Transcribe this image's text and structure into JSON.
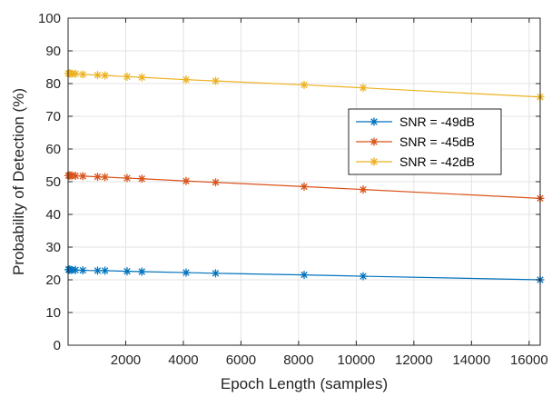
{
  "chart_data": {
    "type": "line",
    "xlabel": "Epoch Length (samples)",
    "ylabel": "Probability of Detection (%)",
    "xlim": [
      0,
      16384
    ],
    "ylim": [
      0,
      100
    ],
    "xticks": [
      2000,
      4000,
      6000,
      8000,
      10000,
      12000,
      14000,
      16000
    ],
    "yticks": [
      0,
      10,
      20,
      30,
      40,
      50,
      60,
      70,
      80,
      90,
      100
    ],
    "grid": true,
    "legend_position": "right",
    "x": [
      16,
      32,
      64,
      128,
      256,
      512,
      1024,
      1280,
      2048,
      2560,
      4096,
      5120,
      8192,
      10240,
      16384
    ],
    "series": [
      {
        "name": "SNR = -49dB",
        "color": "#0072BD",
        "marker": "asterisk",
        "values": [
          23.1,
          23.1,
          23.1,
          23.0,
          23.0,
          22.9,
          22.8,
          22.8,
          22.6,
          22.5,
          22.2,
          22.0,
          21.5,
          21.1,
          20.0
        ]
      },
      {
        "name": "SNR = -45dB",
        "color": "#D95319",
        "marker": "asterisk",
        "values": [
          51.9,
          51.9,
          51.9,
          51.9,
          51.8,
          51.7,
          51.5,
          51.4,
          51.1,
          50.9,
          50.2,
          49.8,
          48.5,
          47.6,
          44.9
        ]
      },
      {
        "name": "SNR = -42dB",
        "color": "#EDB120",
        "marker": "asterisk",
        "values": [
          83.1,
          83.1,
          83.1,
          83.0,
          83.0,
          82.8,
          82.6,
          82.5,
          82.1,
          81.9,
          81.2,
          80.8,
          79.6,
          78.7,
          75.9
        ]
      }
    ]
  }
}
